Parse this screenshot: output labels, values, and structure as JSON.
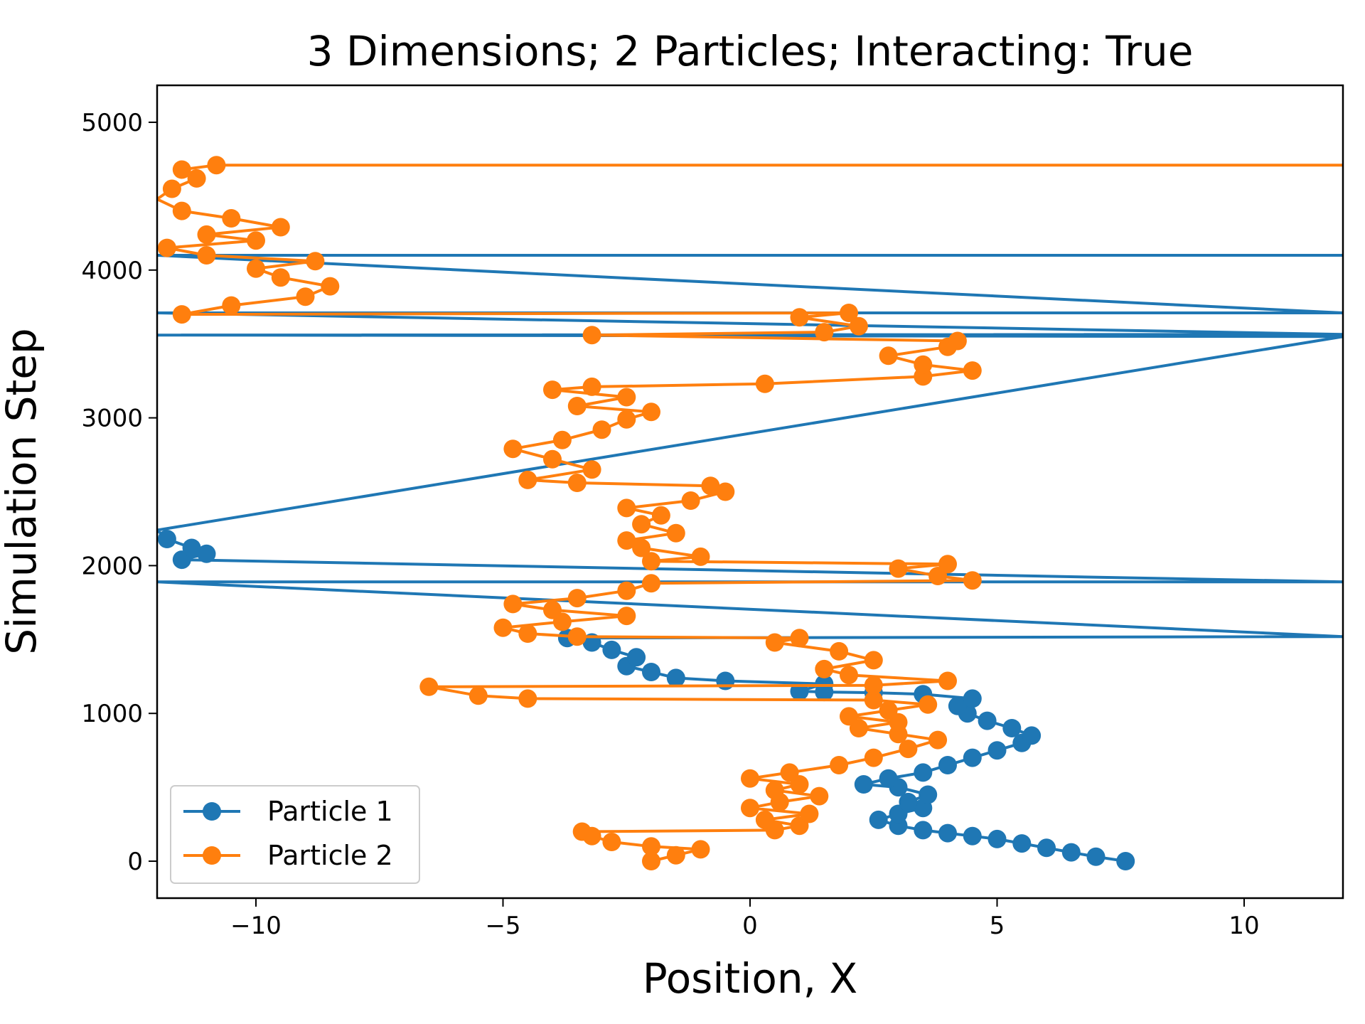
{
  "chart_data": {
    "type": "scatter",
    "title": "3 Dimensions; 2 Particles; Interacting: True",
    "xlabel": "Position, X",
    "ylabel": "Simulation Step",
    "xlim": [
      -12,
      12
    ],
    "ylim": [
      -250,
      5250
    ],
    "xticks": [
      -10,
      -5,
      0,
      5,
      10
    ],
    "xtick_labels": [
      "−10",
      "−5",
      "0",
      "5",
      "10"
    ],
    "yticks": [
      0,
      1000,
      2000,
      3000,
      4000,
      5000
    ],
    "ytick_labels": [
      "0",
      "1000",
      "2000",
      "3000",
      "4000",
      "5000"
    ],
    "grid": false,
    "legend_position": "lower-left",
    "series": [
      {
        "name": "Particle 1",
        "color": "#1f77b4",
        "points": [
          [
            7.6,
            0
          ],
          [
            7.0,
            30
          ],
          [
            6.5,
            60
          ],
          [
            6.0,
            90
          ],
          [
            5.5,
            120
          ],
          [
            5.0,
            150
          ],
          [
            4.5,
            170
          ],
          [
            4.0,
            190
          ],
          [
            3.5,
            210
          ],
          [
            3.0,
            240
          ],
          [
            2.6,
            280
          ],
          [
            3.0,
            320
          ],
          [
            3.5,
            360
          ],
          [
            3.2,
            400
          ],
          [
            3.6,
            450
          ],
          [
            3.0,
            500
          ],
          [
            2.3,
            520
          ],
          [
            2.8,
            560
          ],
          [
            3.5,
            600
          ],
          [
            4.0,
            650
          ],
          [
            4.5,
            700
          ],
          [
            5.0,
            750
          ],
          [
            5.5,
            800
          ],
          [
            5.7,
            850
          ],
          [
            5.3,
            900
          ],
          [
            4.8,
            950
          ],
          [
            4.4,
            1000
          ],
          [
            4.2,
            1050
          ],
          [
            4.5,
            1100
          ],
          [
            3.5,
            1130
          ],
          [
            2.5,
            1140
          ],
          [
            1.5,
            1145
          ],
          [
            1.0,
            1150
          ],
          [
            1.5,
            1200
          ],
          [
            -0.5,
            1220
          ],
          [
            -1.5,
            1240
          ],
          [
            -2.0,
            1280
          ],
          [
            -2.5,
            1320
          ],
          [
            -2.3,
            1380
          ],
          [
            -2.8,
            1430
          ],
          [
            -3.2,
            1480
          ],
          [
            -3.7,
            1510
          ],
          [
            12.0,
            1520
          ],
          [
            -12.0,
            1890
          ],
          [
            12.0,
            1890
          ],
          [
            -11.5,
            2040
          ],
          [
            -11.0,
            2080
          ],
          [
            -11.3,
            2120
          ],
          [
            -11.8,
            2180
          ],
          [
            -12.0,
            2240
          ],
          [
            12.0,
            3550
          ],
          [
            -12.0,
            3560
          ],
          [
            12.0,
            3565
          ],
          [
            -12.0,
            3710
          ],
          [
            12.0,
            3710
          ],
          [
            -12.0,
            4100
          ],
          [
            12.0,
            4100
          ]
        ]
      },
      {
        "name": "Particle 2",
        "color": "#ff7f0e",
        "points": [
          [
            -2.0,
            0
          ],
          [
            -1.5,
            40
          ],
          [
            -1.0,
            80
          ],
          [
            -2.0,
            100
          ],
          [
            -2.8,
            130
          ],
          [
            -3.2,
            170
          ],
          [
            -3.4,
            200
          ],
          [
            0.5,
            210
          ],
          [
            1.0,
            240
          ],
          [
            0.3,
            280
          ],
          [
            1.2,
            320
          ],
          [
            0.0,
            360
          ],
          [
            0.6,
            400
          ],
          [
            1.4,
            440
          ],
          [
            0.5,
            480
          ],
          [
            1.0,
            520
          ],
          [
            0.0,
            560
          ],
          [
            0.8,
            600
          ],
          [
            1.8,
            650
          ],
          [
            2.5,
            700
          ],
          [
            3.2,
            760
          ],
          [
            3.8,
            820
          ],
          [
            3.0,
            860
          ],
          [
            2.2,
            900
          ],
          [
            3.0,
            940
          ],
          [
            2.0,
            980
          ],
          [
            2.8,
            1020
          ],
          [
            3.6,
            1060
          ],
          [
            2.5,
            1090
          ],
          [
            -4.5,
            1100
          ],
          [
            -5.5,
            1120
          ],
          [
            -6.5,
            1180
          ],
          [
            2.5,
            1190
          ],
          [
            4.0,
            1220
          ],
          [
            2.0,
            1260
          ],
          [
            1.5,
            1300
          ],
          [
            2.5,
            1360
          ],
          [
            1.8,
            1420
          ],
          [
            0.5,
            1480
          ],
          [
            1.0,
            1510
          ],
          [
            -3.5,
            1520
          ],
          [
            -4.5,
            1540
          ],
          [
            -5.0,
            1580
          ],
          [
            -3.8,
            1620
          ],
          [
            -2.5,
            1660
          ],
          [
            -4.0,
            1700
          ],
          [
            -4.8,
            1740
          ],
          [
            -3.5,
            1780
          ],
          [
            -2.5,
            1830
          ],
          [
            -2.0,
            1880
          ],
          [
            4.5,
            1900
          ],
          [
            3.8,
            1930
          ],
          [
            3.0,
            1980
          ],
          [
            4.0,
            2010
          ],
          [
            -2.0,
            2030
          ],
          [
            -1.0,
            2060
          ],
          [
            -2.2,
            2120
          ],
          [
            -2.5,
            2170
          ],
          [
            -1.5,
            2220
          ],
          [
            -2.2,
            2280
          ],
          [
            -1.8,
            2340
          ],
          [
            -2.5,
            2390
          ],
          [
            -1.2,
            2440
          ],
          [
            -0.5,
            2500
          ],
          [
            -0.8,
            2540
          ],
          [
            -3.5,
            2560
          ],
          [
            -4.5,
            2580
          ],
          [
            -3.2,
            2650
          ],
          [
            -4.0,
            2720
          ],
          [
            -4.8,
            2790
          ],
          [
            -3.8,
            2850
          ],
          [
            -3.0,
            2920
          ],
          [
            -2.5,
            2990
          ],
          [
            -2.0,
            3040
          ],
          [
            -3.5,
            3080
          ],
          [
            -2.5,
            3140
          ],
          [
            -4.0,
            3190
          ],
          [
            -3.2,
            3210
          ],
          [
            0.3,
            3230
          ],
          [
            3.5,
            3280
          ],
          [
            4.5,
            3320
          ],
          [
            3.5,
            3360
          ],
          [
            2.8,
            3420
          ],
          [
            4.0,
            3480
          ],
          [
            4.2,
            3520
          ],
          [
            -3.2,
            3560
          ],
          [
            1.5,
            3580
          ],
          [
            2.2,
            3620
          ],
          [
            1.0,
            3680
          ],
          [
            2.0,
            3710
          ],
          [
            -11.5,
            3700
          ],
          [
            -10.5,
            3760
          ],
          [
            -9.0,
            3820
          ],
          [
            -8.5,
            3890
          ],
          [
            -9.5,
            3950
          ],
          [
            -10.0,
            4010
          ],
          [
            -8.8,
            4060
          ],
          [
            -11.0,
            4100
          ],
          [
            -11.8,
            4150
          ],
          [
            -10.0,
            4200
          ],
          [
            -11.0,
            4240
          ],
          [
            -9.5,
            4290
          ],
          [
            -10.5,
            4350
          ],
          [
            -11.5,
            4400
          ],
          [
            -12.0,
            4480
          ],
          [
            -11.7,
            4550
          ],
          [
            -11.2,
            4620
          ],
          [
            -11.5,
            4680
          ],
          [
            -10.8,
            4710
          ],
          [
            12.0,
            4710
          ]
        ]
      }
    ]
  }
}
